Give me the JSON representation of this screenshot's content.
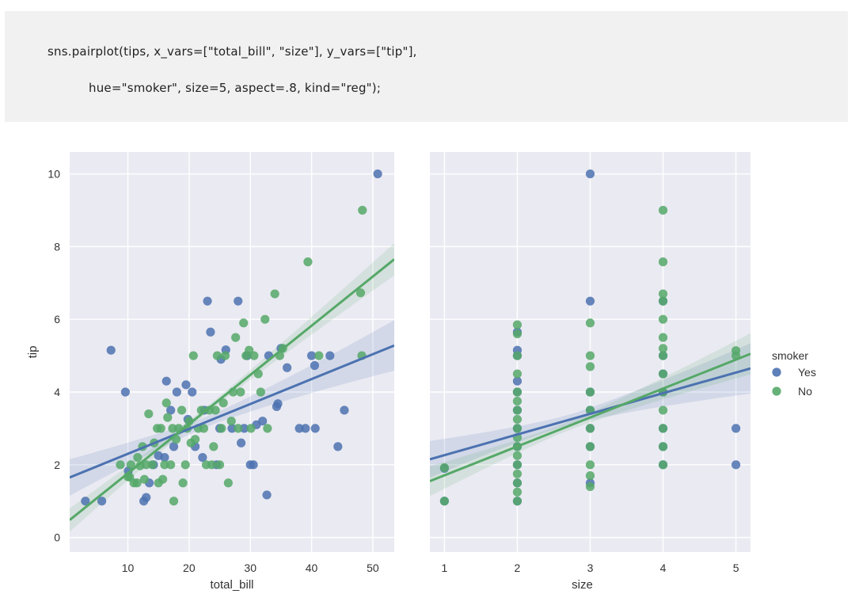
{
  "code": {
    "line1": "sns.pairplot(tips, x_vars=[\"total_bill\", \"size\"], y_vars=[\"tip\"],",
    "line2": "hue=\"smoker\", size=5, aspect=.8, kind=\"reg\");"
  },
  "colors": {
    "panel_bg": "#eaeaf2",
    "grid": "#ffffff",
    "yes": "#4c72b0",
    "no": "#55a868"
  },
  "chart_data": [
    {
      "type": "scatter",
      "subtype": "regression",
      "xlabel": "total_bill",
      "ylabel": "tip",
      "xlim": [
        0.5,
        53.5
      ],
      "ylim": [
        -0.4,
        10.6
      ],
      "xticks": [
        10,
        20,
        30,
        40,
        50
      ],
      "yticks": [
        0,
        2,
        4,
        6,
        8,
        10
      ],
      "series": [
        {
          "name": "Yes",
          "color": "#4c72b0",
          "points": [
            [
              3.07,
              1.0
            ],
            [
              7.25,
              5.15
            ],
            [
              9.6,
              4.0
            ],
            [
              5.75,
              1.0
            ],
            [
              10.07,
              1.83
            ],
            [
              12.6,
              1.0
            ],
            [
              13.0,
              1.1
            ],
            [
              13.5,
              1.5
            ],
            [
              14.2,
              2.0
            ],
            [
              15.0,
              2.25
            ],
            [
              16.0,
              2.2
            ],
            [
              16.3,
              4.3
            ],
            [
              17.5,
              2.5
            ],
            [
              17.0,
              3.5
            ],
            [
              18.0,
              4.0
            ],
            [
              19.5,
              4.2
            ],
            [
              19.8,
              3.25
            ],
            [
              20.5,
              4.0
            ],
            [
              21.0,
              2.5
            ],
            [
              22.2,
              2.2
            ],
            [
              22.5,
              3.5
            ],
            [
              23.0,
              6.5
            ],
            [
              23.5,
              5.65
            ],
            [
              24.5,
              2.0
            ],
            [
              25.0,
              3.0
            ],
            [
              25.2,
              4.9
            ],
            [
              26.0,
              5.16
            ],
            [
              27.0,
              3.0
            ],
            [
              28.0,
              6.5
            ],
            [
              28.5,
              2.6
            ],
            [
              29.0,
              3.0
            ],
            [
              29.5,
              5.0
            ],
            [
              30.0,
              2.0
            ],
            [
              30.5,
              2.0
            ],
            [
              31.0,
              3.1
            ],
            [
              32.0,
              3.2
            ],
            [
              32.7,
              1.17
            ],
            [
              33.0,
              5.0
            ],
            [
              34.3,
              3.6
            ],
            [
              34.5,
              3.68
            ],
            [
              35.0,
              5.2
            ],
            [
              36.0,
              4.67
            ],
            [
              38.0,
              3.0
            ],
            [
              39.0,
              3.0
            ],
            [
              40.0,
              5.0
            ],
            [
              40.5,
              4.73
            ],
            [
              40.6,
              3.0
            ],
            [
              43.0,
              5.0
            ],
            [
              44.3,
              2.5
            ],
            [
              45.35,
              3.5
            ],
            [
              50.8,
              10.0
            ]
          ],
          "fit_line": [
            [
              0.5,
              1.65
            ],
            [
              53.5,
              5.28
            ]
          ]
        },
        {
          "name": "No",
          "color": "#55a868",
          "points": [
            [
              8.77,
              2.0
            ],
            [
              10.0,
              1.67
            ],
            [
              10.3,
              1.66
            ],
            [
              10.5,
              2.0
            ],
            [
              11.0,
              1.5
            ],
            [
              11.5,
              1.5
            ],
            [
              11.6,
              2.2
            ],
            [
              12.0,
              1.97
            ],
            [
              12.4,
              2.5
            ],
            [
              12.7,
              1.6
            ],
            [
              13.0,
              2.0
            ],
            [
              13.4,
              3.4
            ],
            [
              14.0,
              2.0
            ],
            [
              14.3,
              2.6
            ],
            [
              14.8,
              3.0
            ],
            [
              15.0,
              1.5
            ],
            [
              15.4,
              3.0
            ],
            [
              15.7,
              1.6
            ],
            [
              16.0,
              2.0
            ],
            [
              16.3,
              3.7
            ],
            [
              16.5,
              3.3
            ],
            [
              17.0,
              2.0
            ],
            [
              17.3,
              3.0
            ],
            [
              17.5,
              1.0
            ],
            [
              17.9,
              2.7
            ],
            [
              18.3,
              3.0
            ],
            [
              18.8,
              3.5
            ],
            [
              19.0,
              1.5
            ],
            [
              19.4,
              2.0
            ],
            [
              19.7,
              3.0
            ],
            [
              20.0,
              3.2
            ],
            [
              20.3,
              2.6
            ],
            [
              20.7,
              5.0
            ],
            [
              21.0,
              2.7
            ],
            [
              21.5,
              3.0
            ],
            [
              22.0,
              3.5
            ],
            [
              22.4,
              3.0
            ],
            [
              22.8,
              2.0
            ],
            [
              23.3,
              3.5
            ],
            [
              23.7,
              2.0
            ],
            [
              24.0,
              2.5
            ],
            [
              24.3,
              3.5
            ],
            [
              24.6,
              5.0
            ],
            [
              25.0,
              2.0
            ],
            [
              25.3,
              3.0
            ],
            [
              25.6,
              3.7
            ],
            [
              25.9,
              5.0
            ],
            [
              26.4,
              1.5
            ],
            [
              26.9,
              3.2
            ],
            [
              27.2,
              4.0
            ],
            [
              27.6,
              5.5
            ],
            [
              28.0,
              3.0
            ],
            [
              28.4,
              4.0
            ],
            [
              28.9,
              5.9
            ],
            [
              29.3,
              5.0
            ],
            [
              29.8,
              5.15
            ],
            [
              30.1,
              3.0
            ],
            [
              30.6,
              5.0
            ],
            [
              31.3,
              4.5
            ],
            [
              31.7,
              4.0
            ],
            [
              32.4,
              6.0
            ],
            [
              32.8,
              3.0
            ],
            [
              34.0,
              6.7
            ],
            [
              34.8,
              5.0
            ],
            [
              35.3,
              5.2
            ],
            [
              39.4,
              7.58
            ],
            [
              41.2,
              5.0
            ],
            [
              48.3,
              9.0
            ],
            [
              48.0,
              6.73
            ],
            [
              48.2,
              5.0
            ]
          ],
          "fit_line": [
            [
              0.5,
              0.48
            ],
            [
              53.5,
              7.65
            ]
          ]
        }
      ]
    },
    {
      "type": "scatter",
      "subtype": "regression",
      "xlabel": "size",
      "ylabel": "",
      "xlim": [
        0.8,
        5.2
      ],
      "ylim": [
        -0.4,
        10.6
      ],
      "xticks": [
        1,
        2,
        3,
        4,
        5
      ],
      "yticks": [
        0,
        2,
        4,
        6,
        8,
        10
      ],
      "series": [
        {
          "name": "Yes",
          "color": "#4c72b0",
          "points": [
            [
              1,
              1.0
            ],
            [
              1,
              1.9
            ],
            [
              2,
              1.0
            ],
            [
              2,
              1.5
            ],
            [
              2,
              2.0
            ],
            [
              2,
              2.5
            ],
            [
              2,
              3.0
            ],
            [
              2,
              3.5
            ],
            [
              2,
              4.0
            ],
            [
              2,
              4.3
            ],
            [
              2,
              5.0
            ],
            [
              2,
              5.15
            ],
            [
              2,
              5.65
            ],
            [
              3,
              1.5
            ],
            [
              3,
              2.5
            ],
            [
              3,
              3.0
            ],
            [
              3,
              3.5
            ],
            [
              3,
              4.0
            ],
            [
              3,
              6.5
            ],
            [
              3,
              10.0
            ],
            [
              4,
              2.0
            ],
            [
              4,
              2.5
            ],
            [
              4,
              3.0
            ],
            [
              4,
              4.0
            ],
            [
              4,
              4.5
            ],
            [
              4,
              5.0
            ],
            [
              4,
              6.5
            ],
            [
              5,
              2.0
            ],
            [
              5,
              3.0
            ]
          ],
          "fit_line": [
            [
              0.8,
              2.15
            ],
            [
              5.2,
              4.65
            ]
          ]
        },
        {
          "name": "No",
          "color": "#55a868",
          "points": [
            [
              1,
              1.0
            ],
            [
              1,
              1.92
            ],
            [
              2,
              1.0
            ],
            [
              2,
              1.25
            ],
            [
              2,
              1.5
            ],
            [
              2,
              1.75
            ],
            [
              2,
              2.0
            ],
            [
              2,
              2.25
            ],
            [
              2,
              2.5
            ],
            [
              2,
              2.75
            ],
            [
              2,
              3.0
            ],
            [
              2,
              3.25
            ],
            [
              2,
              3.5
            ],
            [
              2,
              3.75
            ],
            [
              2,
              4.0
            ],
            [
              2,
              4.5
            ],
            [
              2,
              5.0
            ],
            [
              2,
              5.6
            ],
            [
              2,
              5.85
            ],
            [
              3,
              1.4
            ],
            [
              3,
              1.7
            ],
            [
              3,
              2.0
            ],
            [
              3,
              2.5
            ],
            [
              3,
              3.0
            ],
            [
              3,
              3.5
            ],
            [
              3,
              4.0
            ],
            [
              3,
              4.7
            ],
            [
              3,
              5.0
            ],
            [
              3,
              5.9
            ],
            [
              4,
              2.0
            ],
            [
              4,
              2.5
            ],
            [
              4,
              3.0
            ],
            [
              4,
              3.5
            ],
            [
              4,
              4.0
            ],
            [
              4,
              4.5
            ],
            [
              4,
              5.0
            ],
            [
              4,
              5.2
            ],
            [
              4,
              5.5
            ],
            [
              4,
              6.0
            ],
            [
              4,
              6.5
            ],
            [
              4,
              6.7
            ],
            [
              4,
              7.58
            ],
            [
              4,
              9.0
            ],
            [
              5,
              5.0
            ],
            [
              5,
              5.14
            ]
          ],
          "fit_line": [
            [
              0.8,
              1.55
            ],
            [
              5.2,
              5.05
            ]
          ]
        }
      ]
    }
  ],
  "legend": {
    "title": "smoker",
    "placement": "right",
    "items": [
      {
        "label": "Yes",
        "color": "#4c72b0"
      },
      {
        "label": "No",
        "color": "#55a868"
      }
    ]
  }
}
